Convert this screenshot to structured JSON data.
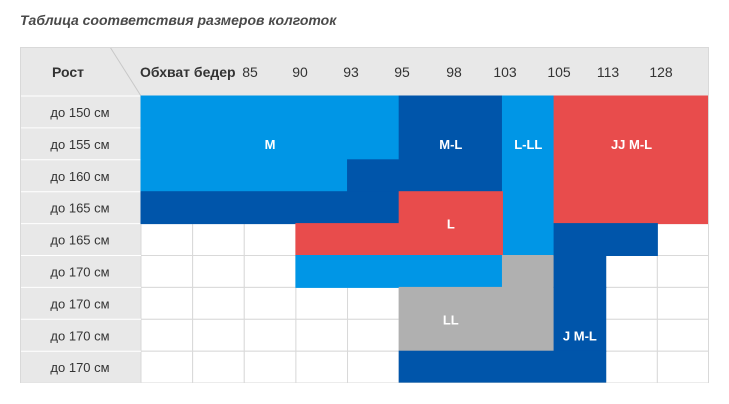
{
  "title": "Таблица соответствия размеров колготок",
  "header": {
    "row_label": "Рост",
    "col_label": "Обхват бедер",
    "hips": [
      "85",
      "90",
      "93",
      "95",
      "98",
      "103",
      "105",
      "113",
      "128"
    ]
  },
  "rows": [
    "до 150 см",
    "до 155 см",
    "до 160 см",
    "до 165 см",
    "до 165 см",
    "до 170 см",
    "до 170 см",
    "до 170 см",
    "до 170 см"
  ],
  "colors": {
    "light_blue": "#0096e6",
    "dark_blue": "#0055aa",
    "red": "#e84c4c",
    "grey": "#b0b0b0",
    "header_bg": "#e8e8e8",
    "grid": "#d9d9d9"
  },
  "zones": [
    {
      "label": "M",
      "color": "light_blue"
    },
    {
      "label": "M-L",
      "color": "dark_blue"
    },
    {
      "label": "L-LL",
      "color": "light_blue"
    },
    {
      "label": "JJ M-L",
      "color": "red"
    },
    {
      "label": "L",
      "color": "red"
    },
    {
      "label": "LL",
      "color": "grey"
    },
    {
      "label": "J M-L",
      "color": "dark_blue"
    }
  ]
}
